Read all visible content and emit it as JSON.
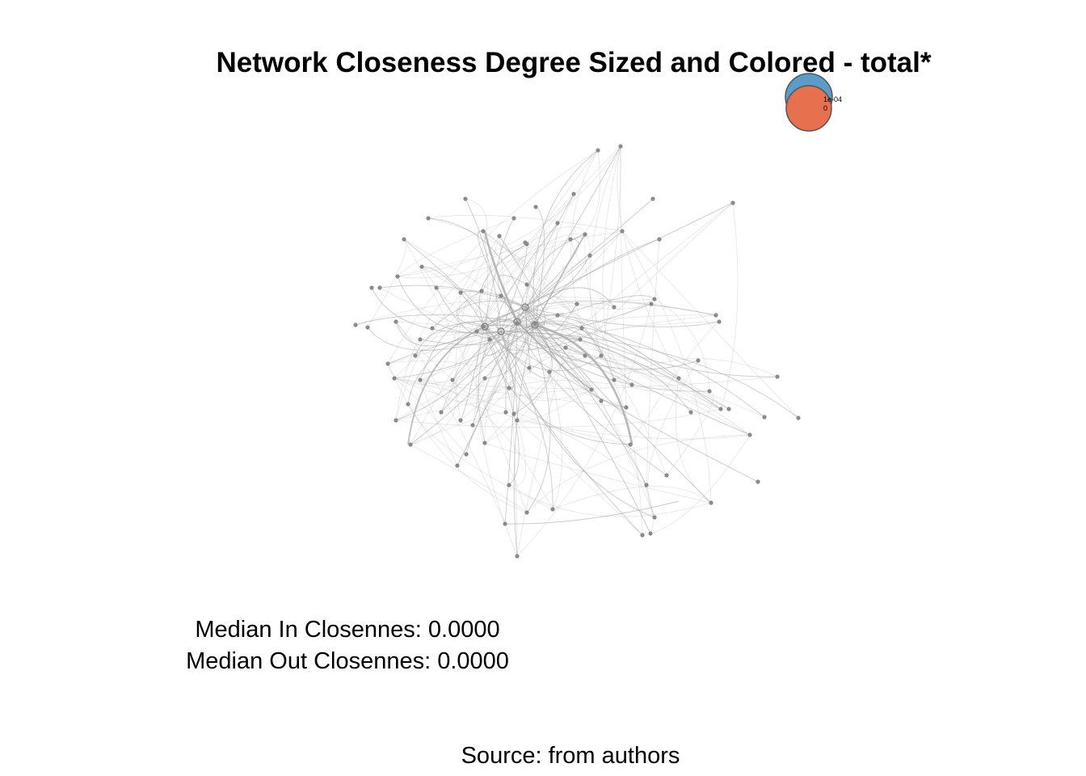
{
  "title": "Network Closeness Degree Sized and Colored - total*",
  "legend": {
    "items": [
      {
        "label": "1e-04",
        "color": "#5b9bc7"
      },
      {
        "label": "0",
        "color": "#e7704f"
      }
    ]
  },
  "stats": {
    "median_in": "Median In Closennes: 0.0000",
    "median_out": "Median Out Closennes: 0.0000"
  },
  "caption": "Source: from authors",
  "colors": {
    "edge": "#a8a8a8",
    "node": "#8a8a8a",
    "legend_stroke": "#555555"
  }
}
